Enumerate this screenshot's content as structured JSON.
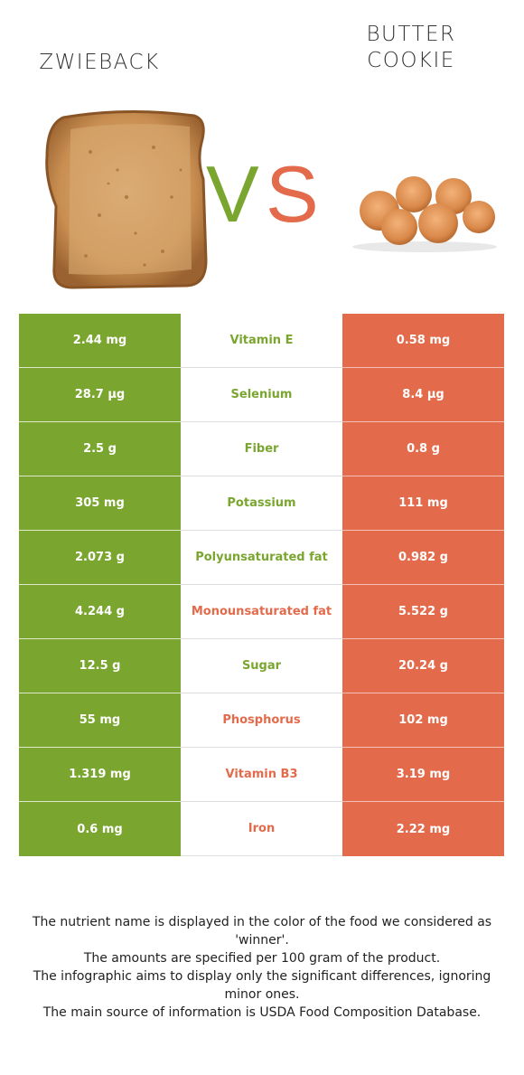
{
  "left_food": {
    "name": "ZWIEBACK",
    "color": "#7aa62f"
  },
  "right_food": {
    "name_line1": "BUTTER",
    "name_line2": "COOKIE",
    "color": "#e36b4c"
  },
  "vs": {
    "v": "V",
    "s": "S"
  },
  "rows": [
    {
      "left": "2.44 mg",
      "nutrient": "Vitamin E",
      "right": "0.58 mg",
      "winner": "left"
    },
    {
      "left": "28.7 µg",
      "nutrient": "Selenium",
      "right": "8.4 µg",
      "winner": "left"
    },
    {
      "left": "2.5 g",
      "nutrient": "Fiber",
      "right": "0.8 g",
      "winner": "left"
    },
    {
      "left": "305 mg",
      "nutrient": "Potassium",
      "right": "111 mg",
      "winner": "left"
    },
    {
      "left": "2.073 g",
      "nutrient": "Polyunsaturated fat",
      "right": "0.982 g",
      "winner": "left"
    },
    {
      "left": "4.244 g",
      "nutrient": "Monounsaturated fat",
      "right": "5.522 g",
      "winner": "right"
    },
    {
      "left": "12.5 g",
      "nutrient": "Sugar",
      "right": "20.24 g",
      "winner": "left"
    },
    {
      "left": "55 mg",
      "nutrient": "Phosphorus",
      "right": "102 mg",
      "winner": "right"
    },
    {
      "left": "1.319 mg",
      "nutrient": "Vitamin B3",
      "right": "3.19 mg",
      "winner": "right"
    },
    {
      "left": "0.6 mg",
      "nutrient": "Iron",
      "right": "2.22 mg",
      "winner": "right"
    }
  ],
  "footer": [
    "The nutrient name is displayed in the color of the food we considered as 'winner'.",
    "The amounts are specified per 100 gram of the product.",
    "The infographic aims to display only the significant differences, ignoring minor ones.",
    "The main source of information is USDA Food Composition Database."
  ]
}
